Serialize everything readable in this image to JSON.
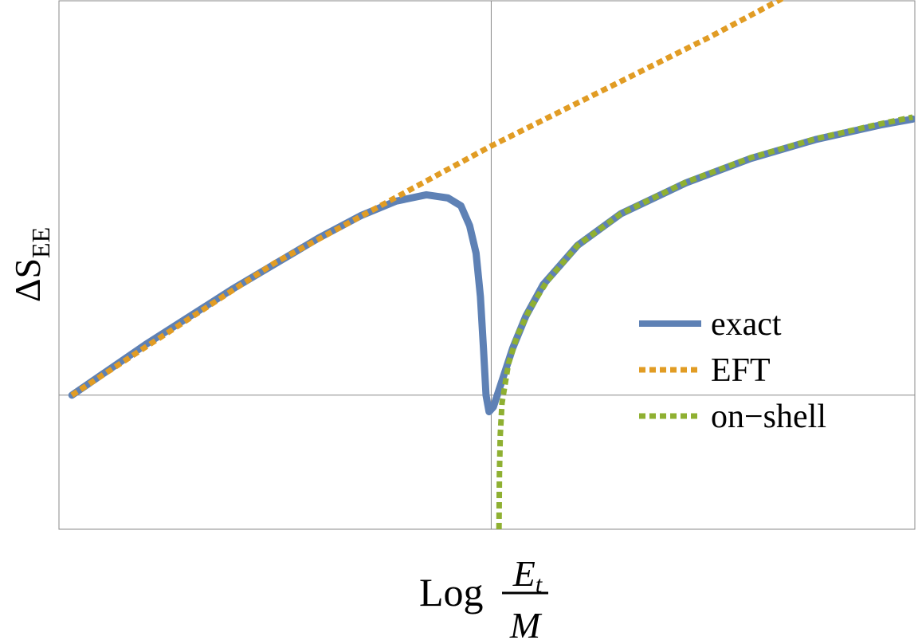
{
  "chart_data": {
    "type": "line",
    "title": "",
    "xlabel": {
      "prefix": "Log",
      "numerator_base": "E",
      "numerator_subscript": "t",
      "denominator": "M"
    },
    "ylabel": {
      "base": "ΔS",
      "subscript": "EE"
    },
    "xlim": [
      -1.0,
      0.98
    ],
    "ylim": [
      -0.34,
      1.0
    ],
    "axes_cross": {
      "x": 0,
      "y": 0
    },
    "ticks": "none",
    "grid": false,
    "legend": {
      "placement": "right-center",
      "entries": [
        {
          "label": "exact",
          "color": "#5e81b5",
          "style": "solid"
        },
        {
          "label": "EFT",
          "color": "#e19c24",
          "style": "dotted"
        },
        {
          "label": "on−shell",
          "color": "#8fb032",
          "style": "dotted"
        }
      ]
    },
    "series": [
      {
        "name": "exact",
        "color": "#5e81b5",
        "style": "solid",
        "points": [
          [
            -0.97,
            0.0
          ],
          [
            -0.8,
            0.128
          ],
          [
            -0.6,
            0.268
          ],
          [
            -0.4,
            0.398
          ],
          [
            -0.3,
            0.456
          ],
          [
            -0.22,
            0.492
          ],
          [
            -0.15,
            0.508
          ],
          [
            -0.1,
            0.5
          ],
          [
            -0.07,
            0.48
          ],
          [
            -0.05,
            0.43
          ],
          [
            -0.035,
            0.36
          ],
          [
            -0.025,
            0.25
          ],
          [
            -0.018,
            0.12
          ],
          [
            -0.012,
            0.0
          ],
          [
            -0.005,
            -0.042
          ],
          [
            0.005,
            -0.03
          ],
          [
            0.02,
            0.02
          ],
          [
            0.05,
            0.12
          ],
          [
            0.08,
            0.2
          ],
          [
            0.12,
            0.28
          ],
          [
            0.2,
            0.38
          ],
          [
            0.3,
            0.46
          ],
          [
            0.45,
            0.538
          ],
          [
            0.6,
            0.6
          ],
          [
            0.75,
            0.648
          ],
          [
            0.9,
            0.685
          ],
          [
            0.975,
            0.7
          ]
        ]
      },
      {
        "name": "EFT",
        "color": "#e19c24",
        "style": "dotted",
        "points": [
          [
            -0.97,
            0.0
          ],
          [
            -0.5,
            0.336
          ],
          [
            0.0,
            0.632
          ],
          [
            0.5,
            0.905
          ],
          [
            0.965,
            1.175
          ]
        ]
      },
      {
        "name": "on-shell",
        "color": "#8fb032",
        "style": "dotted",
        "points": [
          [
            0.018,
            -0.34
          ],
          [
            0.019,
            -0.2
          ],
          [
            0.021,
            -0.1
          ],
          [
            0.025,
            -0.02
          ],
          [
            0.04,
            0.08
          ],
          [
            0.06,
            0.15
          ],
          [
            0.09,
            0.22
          ],
          [
            0.13,
            0.29
          ],
          [
            0.2,
            0.38
          ],
          [
            0.3,
            0.46
          ],
          [
            0.45,
            0.54
          ],
          [
            0.6,
            0.602
          ],
          [
            0.75,
            0.65
          ],
          [
            0.9,
            0.688
          ],
          [
            0.975,
            0.705
          ]
        ]
      }
    ]
  }
}
